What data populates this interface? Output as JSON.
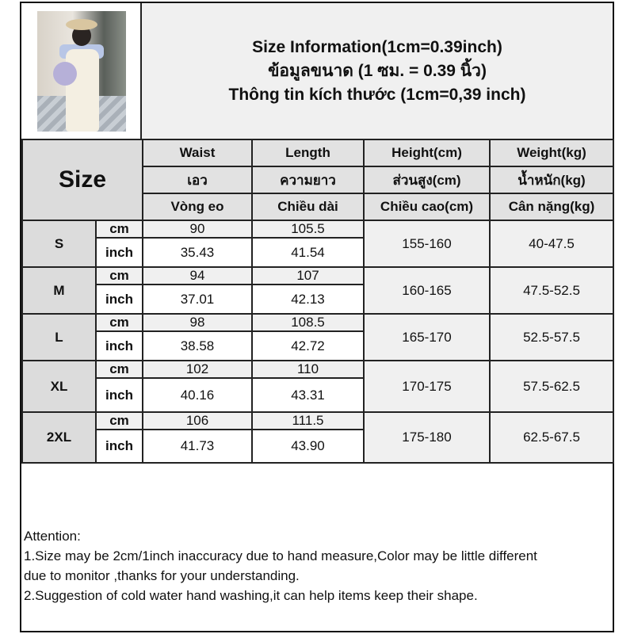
{
  "title_lines": [
    "Size Information(1cm=0.39inch)",
    "ข้อมูลขนาด (1 ซม. = 0.39 นิ้ว)",
    "Thông tin kích thước (1cm=0,39 inch)"
  ],
  "size_label": "Size",
  "columns": [
    {
      "en": "Waist",
      "th": "เอว",
      "vi": "Vòng eo"
    },
    {
      "en": "Length",
      "th": "ความยาว",
      "vi": "Chiều dài"
    },
    {
      "en": "Height(cm)",
      "th": "ส่วนสูง(cm)",
      "vi": "Chiều cao(cm)"
    },
    {
      "en": "Weight(kg)",
      "th": "น้ำหนัก(kg)",
      "vi": "Cân nặng(kg)"
    }
  ],
  "units": {
    "cm": "cm",
    "inch": "inch"
  },
  "rows": [
    {
      "size": "S",
      "waist_cm": "90",
      "length_cm": "105.5",
      "waist_in": "35.43",
      "length_in": "41.54",
      "height": "155-160",
      "weight": "40-47.5"
    },
    {
      "size": "M",
      "waist_cm": "94",
      "length_cm": "107",
      "waist_in": "37.01",
      "length_in": "42.13",
      "height": "160-165",
      "weight": "47.5-52.5"
    },
    {
      "size": "L",
      "waist_cm": "98",
      "length_cm": "108.5",
      "waist_in": "38.58",
      "length_in": "42.72",
      "height": "165-170",
      "weight": "52.5-57.5"
    },
    {
      "size": "XL",
      "waist_cm": "102",
      "length_cm": "110",
      "waist_in": "40.16",
      "length_in": "43.31",
      "height": "170-175",
      "weight": "57.5-62.5"
    },
    {
      "size": "2XL",
      "waist_cm": "106",
      "length_cm": "111.5",
      "waist_in": "41.73",
      "length_in": "43.90",
      "height": "175-180",
      "weight": "62.5-67.5"
    }
  ],
  "attention": {
    "heading": "Attention:",
    "lines": [
      "1.Size may be 2cm/1inch inaccuracy due to hand measure,Color may be little different",
      "due to monitor ,thanks for your understanding.",
      "2.Suggestion of cold water hand washing,it can help items keep their shape."
    ]
  },
  "colors": {
    "header_bg": "#e2e2e2",
    "cm_row_bg": "#f0f0f0",
    "border": "#222222"
  }
}
